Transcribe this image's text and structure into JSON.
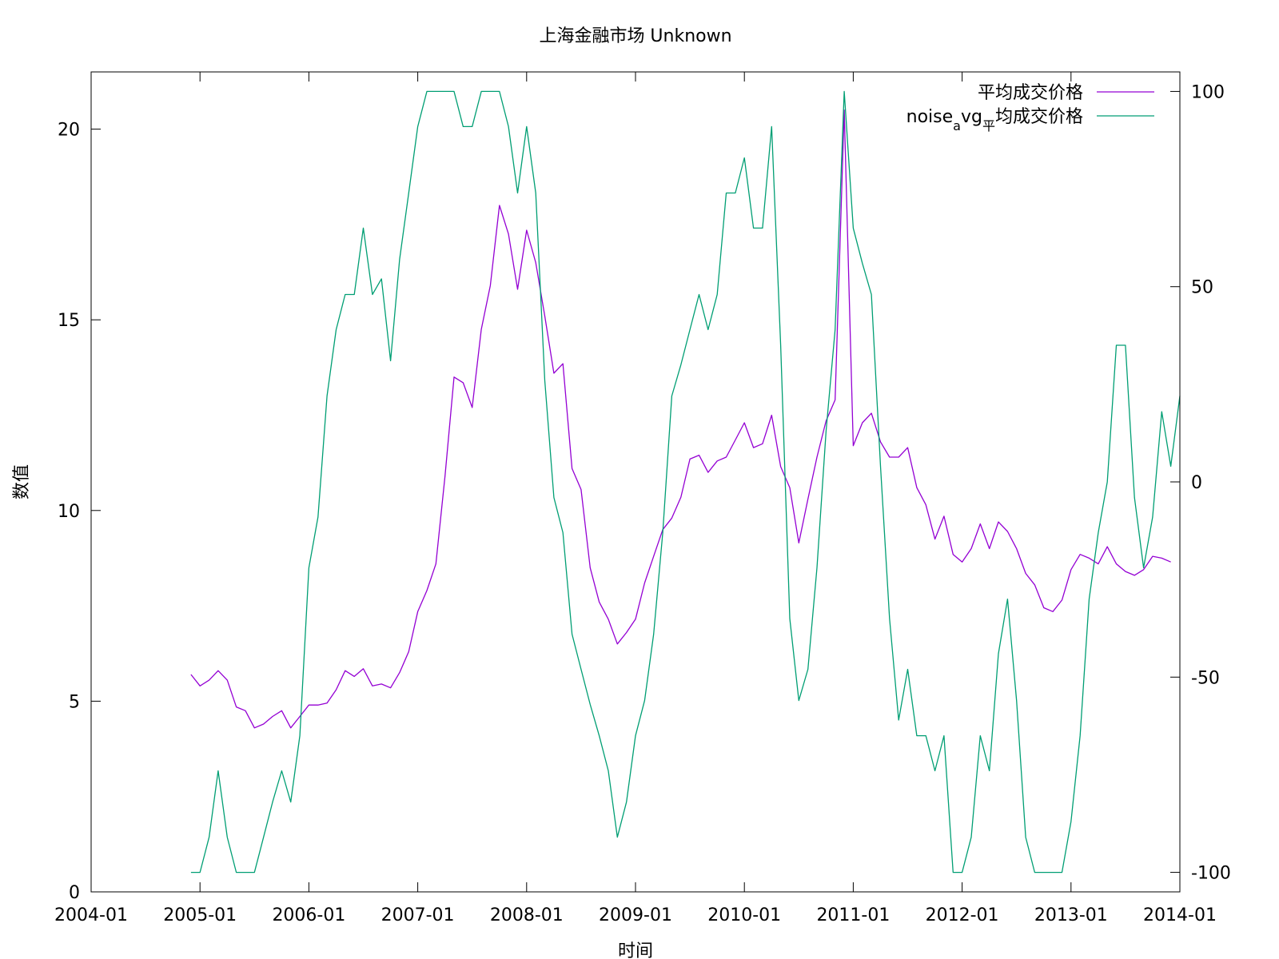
{
  "chart_data": {
    "type": "line",
    "title": "上海金融市场 Unknown",
    "xlabel": "时间",
    "ylabel": "数值",
    "x_ticks": [
      "2004-01",
      "2005-01",
      "2006-01",
      "2007-01",
      "2008-01",
      "2009-01",
      "2010-01",
      "2011-01",
      "2012-01",
      "2013-01",
      "2014-01"
    ],
    "x_range": [
      2004.0,
      2014.0
    ],
    "ylim_left": [
      0,
      21.5
    ],
    "y_ticks_left": [
      "0",
      "5",
      "10",
      "15",
      "20"
    ],
    "ylim_right": [
      -105,
      105
    ],
    "y_ticks_right": [
      "-100",
      "-50",
      "0",
      "50",
      "100"
    ],
    "x_start": 2004.917,
    "x_step": 0.08333,
    "series": [
      {
        "name": "平均成交价格",
        "axis": "left",
        "color": "#9400d3",
        "values": [
          5.7,
          5.4,
          5.55,
          5.8,
          5.55,
          4.85,
          4.75,
          4.3,
          4.4,
          4.6,
          4.75,
          4.3,
          4.6,
          4.9,
          4.9,
          4.95,
          5.3,
          5.8,
          5.65,
          5.85,
          5.4,
          5.45,
          5.35,
          5.75,
          6.3,
          7.35,
          7.9,
          8.6,
          10.9,
          13.5,
          13.35,
          12.7,
          14.75,
          15.9,
          18.0,
          17.25,
          15.8,
          17.35,
          16.5,
          15.1,
          13.6,
          13.85,
          11.1,
          10.55,
          8.5,
          7.6,
          7.15,
          6.5,
          6.8,
          7.15,
          8.1,
          8.8,
          9.5,
          9.8,
          10.35,
          11.35,
          11.45,
          11.0,
          11.3,
          11.4,
          11.85,
          12.3,
          11.65,
          11.75,
          12.5,
          11.15,
          10.6,
          9.15,
          10.3,
          11.4,
          12.35,
          12.9,
          20.5,
          11.7,
          12.3,
          12.55,
          11.8,
          11.4,
          11.4,
          11.65,
          10.6,
          10.15,
          9.25,
          9.85,
          8.85,
          8.65,
          9.0,
          9.65,
          9.0,
          9.7,
          9.45,
          9.0,
          8.35,
          8.05,
          7.45,
          7.35,
          7.65,
          8.45,
          8.85,
          8.75,
          8.6,
          9.05,
          8.6,
          8.4,
          8.3,
          8.45,
          8.8,
          8.75,
          8.65
        ]
      },
      {
        "name": "noise_avg_平均成交价格",
        "axis": "right",
        "color": "#009e73",
        "values": [
          -100,
          -100,
          -91,
          -74,
          -91,
          -100,
          -100,
          -100,
          -91,
          -82,
          -74,
          -82,
          -65,
          -22,
          -9,
          22,
          39,
          48,
          48,
          65,
          48,
          52,
          31,
          57,
          74,
          91,
          100,
          100,
          100,
          100,
          91,
          91,
          100,
          100,
          100,
          91,
          74,
          91,
          74,
          26,
          -4,
          -13,
          -39,
          -48,
          -57,
          -65,
          -74,
          -91,
          -82,
          -65,
          -56,
          -39,
          -13,
          22,
          30,
          39,
          48,
          39,
          48,
          74,
          74,
          83,
          65,
          65,
          91,
          35,
          -35,
          -56,
          -48,
          -22,
          13,
          39,
          100,
          65,
          56,
          48,
          4,
          -35,
          -61,
          -48,
          -65,
          -65,
          -74,
          -65,
          -100,
          -100,
          -91,
          -65,
          -74,
          -44,
          -30,
          -56,
          -91,
          -100,
          -100,
          -100,
          -100,
          -87,
          -65,
          -30,
          -13,
          0,
          35,
          35,
          -4,
          -22,
          -9,
          18,
          4,
          22
        ]
      }
    ],
    "legend": [
      {
        "label_main": "平均成交价格",
        "color": "#9400d3"
      },
      {
        "label_main": "noise",
        "label_sub": "a",
        "label_rest": "vg",
        "label_sub2": "平",
        "label_tail": "均成交价格",
        "color": "#009e73"
      }
    ]
  }
}
